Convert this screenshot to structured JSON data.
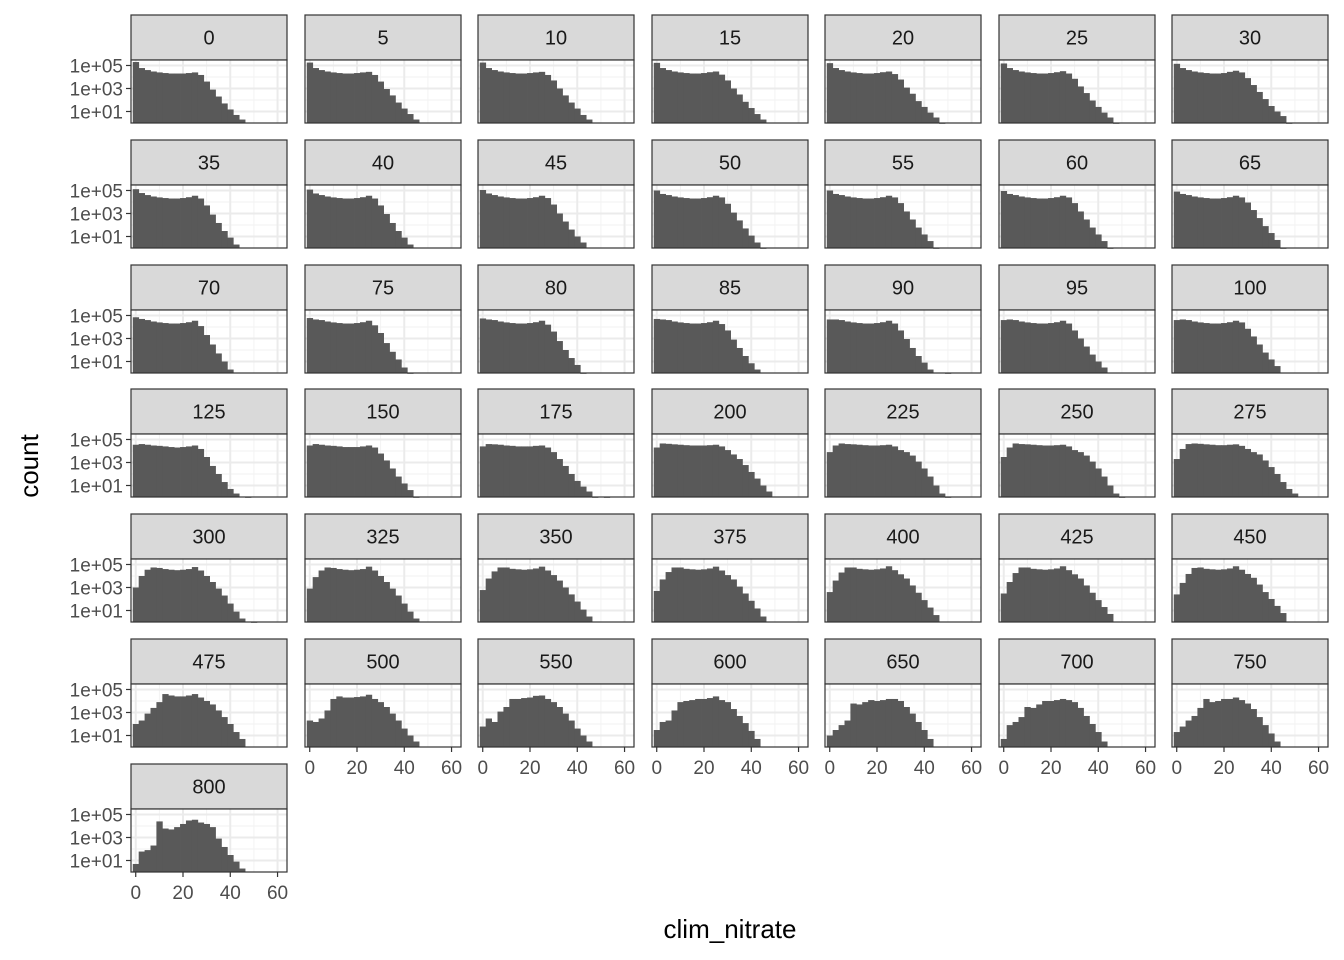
{
  "chart_data": {
    "type": "histogram-facets",
    "xlabel": "clim_nitrate",
    "ylabel": "count",
    "y_scale": "log10",
    "y_ticks": [
      "1e+01",
      "1e+03",
      "1e+05"
    ],
    "y_tick_values": [
      10,
      1000,
      100000
    ],
    "x_ticks": [
      "0",
      "20",
      "40",
      "60"
    ],
    "x_tick_values": [
      0,
      20,
      40,
      60
    ],
    "xlim": [
      -2,
      64
    ],
    "ylim": [
      1,
      300000
    ],
    "bin_width": 2.5,
    "bin_centers": [
      0,
      2.5,
      5,
      7.5,
      10,
      12.5,
      15,
      17.5,
      20,
      22.5,
      25,
      27.5,
      30,
      32.5,
      35,
      37.5,
      40,
      42.5,
      45,
      47.5,
      50,
      52.5,
      55,
      57.5,
      60
    ],
    "grid": true,
    "facet_columns": 7,
    "facets": [
      {
        "label": "0",
        "counts": [
          200000,
          60000,
          40000,
          30000,
          25000,
          22000,
          20000,
          20000,
          20000,
          22000,
          25000,
          15000,
          4000,
          800,
          200,
          50,
          15,
          5,
          2
        ]
      },
      {
        "label": "5",
        "counts": [
          180000,
          60000,
          40000,
          30000,
          25000,
          22000,
          20000,
          20000,
          22000,
          25000,
          28000,
          15000,
          4000,
          900,
          250,
          60,
          18,
          6,
          2
        ]
      },
      {
        "label": "10",
        "counts": [
          180000,
          60000,
          40000,
          30000,
          25000,
          22000,
          20000,
          20000,
          22000,
          25000,
          28000,
          15000,
          5000,
          1000,
          250,
          60,
          18,
          5,
          2
        ]
      },
      {
        "label": "15",
        "counts": [
          170000,
          60000,
          40000,
          30000,
          25000,
          22000,
          20000,
          20000,
          22000,
          26000,
          30000,
          16000,
          5000,
          1000,
          300,
          70,
          20,
          6,
          2
        ]
      },
      {
        "label": "20",
        "counts": [
          160000,
          60000,
          40000,
          30000,
          25000,
          22000,
          20000,
          20000,
          22000,
          26000,
          30000,
          18000,
          6000,
          1200,
          350,
          80,
          25,
          8,
          3,
          1
        ]
      },
      {
        "label": "25",
        "counts": [
          150000,
          60000,
          40000,
          30000,
          25000,
          22000,
          20000,
          20000,
          22000,
          26000,
          32000,
          20000,
          7000,
          1500,
          400,
          90,
          25,
          8,
          3,
          1
        ]
      },
      {
        "label": "30",
        "counts": [
          140000,
          60000,
          40000,
          30000,
          25000,
          22000,
          20000,
          20000,
          22000,
          28000,
          35000,
          25000,
          8000,
          2000,
          500,
          120,
          30,
          10,
          4,
          1
        ]
      },
      {
        "label": "35",
        "counts": [
          130000,
          60000,
          40000,
          30000,
          25000,
          22000,
          20000,
          20000,
          22000,
          26000,
          35000,
          20000,
          5000,
          800,
          150,
          30,
          8,
          2
        ]
      },
      {
        "label": "40",
        "counts": [
          120000,
          55000,
          40000,
          30000,
          25000,
          22000,
          20000,
          20000,
          22000,
          26000,
          35000,
          20000,
          5000,
          900,
          150,
          30,
          8,
          2
        ]
      },
      {
        "label": "45",
        "counts": [
          110000,
          55000,
          40000,
          30000,
          25000,
          22000,
          20000,
          20000,
          22000,
          26000,
          35000,
          22000,
          6000,
          1000,
          200,
          40,
          10,
          3
        ]
      },
      {
        "label": "50",
        "counts": [
          100000,
          50000,
          40000,
          30000,
          25000,
          22000,
          20000,
          20000,
          22000,
          26000,
          35000,
          25000,
          7000,
          1200,
          250,
          50,
          12,
          3,
          1
        ]
      },
      {
        "label": "55",
        "counts": [
          100000,
          50000,
          40000,
          30000,
          25000,
          22000,
          20000,
          20000,
          22000,
          26000,
          35000,
          25000,
          8000,
          1500,
          300,
          60,
          15,
          4,
          1
        ]
      },
      {
        "label": "60",
        "counts": [
          90000,
          50000,
          40000,
          30000,
          25000,
          22000,
          20000,
          20000,
          22000,
          26000,
          35000,
          25000,
          8000,
          1500,
          300,
          60,
          15,
          4,
          1
        ]
      },
      {
        "label": "65",
        "counts": [
          80000,
          50000,
          40000,
          30000,
          25000,
          22000,
          20000,
          20000,
          22000,
          26000,
          35000,
          25000,
          9000,
          2000,
          400,
          80,
          20,
          5,
          1
        ]
      },
      {
        "label": "70",
        "counts": [
          70000,
          50000,
          40000,
          30000,
          25000,
          22000,
          20000,
          20000,
          22000,
          26000,
          35000,
          12000,
          2000,
          300,
          50,
          10,
          2
        ]
      },
      {
        "label": "75",
        "counts": [
          60000,
          45000,
          40000,
          30000,
          25000,
          22000,
          20000,
          20000,
          22000,
          26000,
          35000,
          14000,
          3000,
          400,
          70,
          15,
          3,
          1
        ]
      },
      {
        "label": "80",
        "counts": [
          55000,
          45000,
          40000,
          30000,
          25000,
          22000,
          20000,
          20000,
          22000,
          26000,
          35000,
          16000,
          4000,
          600,
          100,
          20,
          5,
          1
        ]
      },
      {
        "label": "85",
        "counts": [
          50000,
          45000,
          40000,
          30000,
          25000,
          22000,
          20000,
          20000,
          22000,
          26000,
          35000,
          18000,
          5000,
          800,
          150,
          30,
          7,
          2
        ]
      },
      {
        "label": "90",
        "counts": [
          45000,
          45000,
          40000,
          30000,
          25000,
          22000,
          20000,
          20000,
          22000,
          26000,
          35000,
          20000,
          5000,
          900,
          150,
          30,
          8,
          2,
          0,
          0,
          1
        ]
      },
      {
        "label": "95",
        "counts": [
          40000,
          45000,
          40000,
          30000,
          25000,
          22000,
          20000,
          20000,
          22000,
          26000,
          35000,
          20000,
          5000,
          1000,
          200,
          40,
          10,
          3
        ]
      },
      {
        "label": "100",
        "counts": [
          40000,
          45000,
          40000,
          30000,
          25000,
          22000,
          20000,
          20000,
          22000,
          26000,
          35000,
          25000,
          7000,
          1500,
          300,
          60,
          15,
          4
        ]
      },
      {
        "label": "125",
        "counts": [
          35000,
          40000,
          35000,
          30000,
          28000,
          25000,
          22000,
          20000,
          22000,
          25000,
          30000,
          15000,
          3000,
          500,
          100,
          20,
          5,
          2,
          0,
          1
        ]
      },
      {
        "label": "150",
        "counts": [
          30000,
          40000,
          35000,
          30000,
          28000,
          25000,
          22000,
          22000,
          22000,
          25000,
          30000,
          20000,
          6000,
          1500,
          300,
          60,
          15,
          4,
          1
        ]
      },
      {
        "label": "175",
        "counts": [
          25000,
          40000,
          38000,
          35000,
          30000,
          28000,
          25000,
          25000,
          25000,
          28000,
          30000,
          20000,
          8000,
          2000,
          500,
          100,
          25,
          8,
          3,
          1,
          0,
          1
        ]
      },
      {
        "label": "200",
        "counts": [
          20000,
          45000,
          42000,
          38000,
          35000,
          32000,
          30000,
          30000,
          30000,
          32000,
          35000,
          25000,
          12000,
          5000,
          2000,
          600,
          150,
          40,
          10,
          3
        ]
      },
      {
        "label": "225",
        "counts": [
          8000,
          30000,
          45000,
          40000,
          38000,
          35000,
          32000,
          30000,
          30000,
          32000,
          35000,
          25000,
          12000,
          8000,
          4000,
          1200,
          300,
          60,
          10,
          2,
          1
        ]
      },
      {
        "label": "250",
        "counts": [
          3000,
          20000,
          45000,
          40000,
          38000,
          35000,
          32000,
          30000,
          30000,
          32000,
          35000,
          25000,
          12000,
          8000,
          4000,
          1200,
          300,
          60,
          10,
          2,
          1
        ]
      },
      {
        "label": "275",
        "counts": [
          2000,
          15000,
          40000,
          45000,
          42000,
          38000,
          35000,
          32000,
          32000,
          35000,
          38000,
          28000,
          15000,
          8000,
          5000,
          1500,
          400,
          100,
          20,
          5,
          2
        ]
      },
      {
        "label": "300",
        "counts": [
          1000,
          10000,
          35000,
          55000,
          50000,
          40000,
          35000,
          32000,
          35000,
          40000,
          60000,
          30000,
          10000,
          3000,
          800,
          200,
          40,
          8,
          2,
          0,
          1
        ]
      },
      {
        "label": "325",
        "counts": [
          800,
          8000,
          30000,
          55000,
          50000,
          40000,
          35000,
          32000,
          35000,
          40000,
          65000,
          30000,
          10000,
          3000,
          800,
          200,
          40,
          8,
          2
        ]
      },
      {
        "label": "350",
        "counts": [
          600,
          6000,
          25000,
          55000,
          55000,
          42000,
          38000,
          35000,
          38000,
          45000,
          65000,
          30000,
          12000,
          4000,
          1000,
          250,
          60,
          12,
          3
        ]
      },
      {
        "label": "375",
        "counts": [
          500,
          5000,
          22000,
          55000,
          55000,
          42000,
          38000,
          35000,
          38000,
          45000,
          65000,
          30000,
          12000,
          5000,
          1200,
          300,
          70,
          15,
          3
        ]
      },
      {
        "label": "400",
        "counts": [
          400,
          4000,
          20000,
          55000,
          55000,
          42000,
          38000,
          35000,
          38000,
          45000,
          70000,
          32000,
          14000,
          6000,
          1500,
          350,
          80,
          18,
          4
        ]
      },
      {
        "label": "425",
        "counts": [
          300,
          3000,
          18000,
          55000,
          55000,
          42000,
          38000,
          35000,
          38000,
          45000,
          70000,
          32000,
          14000,
          6000,
          1500,
          350,
          80,
          20,
          5
        ]
      },
      {
        "label": "450",
        "counts": [
          250,
          2500,
          15000,
          50000,
          55000,
          42000,
          38000,
          35000,
          38000,
          45000,
          70000,
          35000,
          15000,
          7000,
          1800,
          400,
          100,
          25,
          6
        ]
      },
      {
        "label": "475",
        "counts": [
          100,
          200,
          800,
          2500,
          8000,
          40000,
          30000,
          25000,
          25000,
          30000,
          40000,
          20000,
          10000,
          5000,
          1500,
          400,
          100,
          20,
          5
        ]
      },
      {
        "label": "500",
        "counts": [
          200,
          150,
          300,
          1500,
          15000,
          25000,
          20000,
          20000,
          22000,
          25000,
          35000,
          15000,
          8000,
          3000,
          800,
          200,
          40,
          10,
          3
        ]
      },
      {
        "label": "550",
        "counts": [
          60,
          300,
          150,
          1200,
          3000,
          15000,
          15000,
          18000,
          20000,
          28000,
          30000,
          15000,
          8000,
          3000,
          800,
          200,
          40,
          10,
          3
        ]
      },
      {
        "label": "600",
        "counts": [
          30,
          150,
          200,
          1500,
          8000,
          10000,
          12000,
          15000,
          15000,
          18000,
          25000,
          12000,
          8000,
          2000,
          500,
          120,
          25,
          5
        ]
      },
      {
        "label": "650",
        "counts": [
          10,
          30,
          80,
          200,
          6000,
          5000,
          8000,
          12000,
          10000,
          12000,
          15000,
          15000,
          10000,
          3000,
          800,
          150,
          30,
          5
        ]
      },
      {
        "label": "700",
        "counts": [
          5,
          80,
          150,
          400,
          3000,
          2500,
          5000,
          10000,
          10000,
          12000,
          15000,
          12000,
          8000,
          2500,
          500,
          100,
          20,
          3
        ]
      },
      {
        "label": "750",
        "counts": [
          20,
          60,
          200,
          500,
          2500,
          15000,
          8000,
          10000,
          15000,
          15000,
          20000,
          12000,
          6000,
          2000,
          400,
          80,
          15,
          3
        ]
      },
      {
        "label": "800",
        "counts": [
          5,
          60,
          80,
          200,
          25000,
          6000,
          5000,
          8000,
          15000,
          30000,
          35000,
          20000,
          15000,
          8000,
          800,
          150,
          30,
          8,
          2
        ]
      }
    ]
  }
}
